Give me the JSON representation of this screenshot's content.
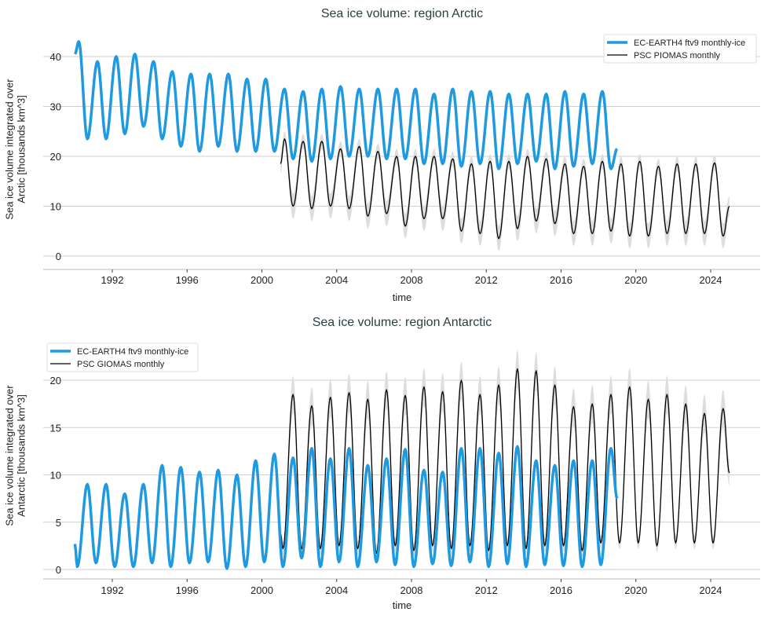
{
  "chart_data": [
    {
      "type": "line",
      "title": "Sea ice volume: region Arctic",
      "xlabel": "time",
      "ylabel": [
        "Sea ice volume integrated over",
        "Arctic [thousands km^3]"
      ],
      "xlim": [
        1988.3,
        2026.6
      ],
      "ylim": [
        -1.5,
        44
      ],
      "xticks": [
        1992,
        1996,
        2000,
        2004,
        2008,
        2012,
        2016,
        2020,
        2024
      ],
      "yticks": [
        0,
        10,
        20,
        30,
        40
      ],
      "grid": "horizontal",
      "legend_position": "top-right",
      "annual_max_month": 3.5,
      "annual_min_month": 9,
      "series": [
        {
          "name": "EC-EARTH4 ftv9 monthly-ice",
          "color": "#1f9ae0",
          "start": {
            "date": "1990-01",
            "value": 40.5
          },
          "end": {
            "date": "2019-01",
            "value": 21.5
          },
          "years": [
            1990,
            1991,
            1992,
            1993,
            1994,
            1995,
            1996,
            1997,
            1998,
            1999,
            2000,
            2001,
            2002,
            2003,
            2004,
            2005,
            2006,
            2007,
            2008,
            2009,
            2010,
            2011,
            2012,
            2013,
            2014,
            2015,
            2016,
            2017,
            2018
          ],
          "annual_max": [
            43,
            39,
            40,
            40.5,
            39,
            37,
            36.5,
            36.5,
            36.5,
            35.5,
            35.5,
            33.5,
            33,
            33.5,
            34,
            33.5,
            33.5,
            33.5,
            33.5,
            32.5,
            33.5,
            33,
            33,
            32.5,
            32.5,
            32.5,
            33,
            32.5,
            33
          ],
          "annual_min": [
            23.5,
            23.5,
            24.5,
            26,
            23.5,
            22,
            21,
            22,
            21,
            21,
            21,
            19.5,
            19,
            19.5,
            20,
            20,
            19.5,
            19.5,
            18.5,
            18.5,
            18,
            18.5,
            17.5,
            18.5,
            19,
            17.5,
            18,
            18.5,
            17.5
          ]
        },
        {
          "name": "PSC PIOMAS monthly",
          "color": "#000000",
          "band_color": "#dddddd",
          "uncertainty_at_max": 1.5,
          "uncertainty_at_min": 2.5,
          "start": {
            "date": "2001-01",
            "value": 18.5
          },
          "end": {
            "date": "2025-01",
            "value": 10
          },
          "years": [
            2001,
            2002,
            2003,
            2004,
            2005,
            2006,
            2007,
            2008,
            2009,
            2010,
            2011,
            2012,
            2013,
            2014,
            2015,
            2016,
            2017,
            2018,
            2019,
            2020,
            2021,
            2022,
            2023,
            2024
          ],
          "annual_max": [
            23.5,
            23,
            23,
            21.5,
            22,
            21,
            20,
            20,
            20,
            19.5,
            18.5,
            19,
            19,
            20,
            19.5,
            18.5,
            18,
            19,
            18.5,
            19,
            18,
            18.5,
            18.5,
            18.7
          ],
          "annual_min": [
            10,
            9.5,
            10,
            9.5,
            8,
            8.5,
            6,
            7.5,
            7.5,
            5,
            4.5,
            3.5,
            5.5,
            7,
            6.5,
            4.5,
            4.5,
            5,
            4,
            4,
            4.5,
            4.5,
            4.5,
            4
          ]
        }
      ]
    },
    {
      "type": "line",
      "title": "Sea ice volume: region Antarctic",
      "xlabel": "time",
      "ylabel": [
        "Sea ice volume integrated over",
        "Antarctic [thousands km^3]"
      ],
      "xlim": [
        1988.3,
        2026.6
      ],
      "ylim": [
        -1,
        24
      ],
      "xticks": [
        1992,
        1996,
        2000,
        2004,
        2008,
        2012,
        2016,
        2020,
        2024
      ],
      "yticks": [
        0,
        5,
        10,
        15,
        20
      ],
      "grid": "horizontal",
      "legend_position": "top-left",
      "annual_max_month": 9,
      "annual_min_month": 2.5,
      "series": [
        {
          "name": "EC-EARTH4 ftv9 monthly-ice",
          "color": "#1f9ae0",
          "start": {
            "date": "1990-01",
            "value": 2.7
          },
          "end": {
            "date": "2019-01",
            "value": 7.5
          },
          "years": [
            1990,
            1991,
            1992,
            1993,
            1994,
            1995,
            1996,
            1997,
            1998,
            1999,
            2000,
            2001,
            2002,
            2003,
            2004,
            2005,
            2006,
            2007,
            2008,
            2009,
            2010,
            2011,
            2012,
            2013,
            2014,
            2015,
            2016,
            2017,
            2018
          ],
          "annual_max": [
            9,
            9,
            8,
            9,
            11,
            10.8,
            10.3,
            10.5,
            10,
            11.5,
            12.2,
            11.8,
            12.8,
            11.7,
            12.8,
            11,
            11.7,
            12.7,
            10.5,
            10.3,
            12.8,
            12.8,
            12.3,
            13,
            11.5,
            11,
            11.5,
            11.5,
            12.8
          ],
          "annual_min": [
            0.3,
            0.7,
            0.3,
            0.3,
            0.7,
            0.3,
            0.7,
            0.8,
            0.1,
            0.3,
            0.8,
            0.3,
            1.2,
            0.3,
            0.8,
            0.3,
            0.8,
            0.5,
            0.3,
            0.6,
            0.4,
            0.8,
            0.3,
            0.6,
            0.3,
            0.5,
            0.4,
            0.3,
            0.5
          ]
        },
        {
          "name": "PSC GIOMAS monthly",
          "color": "#000000",
          "band_color": "#dddddd",
          "uncertainty_at_max": 2,
          "uncertainty_at_min": 0.7,
          "start": {
            "date": "2001-01",
            "value": 3.8
          },
          "end": {
            "date": "2025-01",
            "value": 10.2
          },
          "years": [
            2001,
            2002,
            2003,
            2004,
            2005,
            2006,
            2007,
            2008,
            2009,
            2010,
            2011,
            2012,
            2013,
            2014,
            2015,
            2016,
            2017,
            2018,
            2019,
            2020,
            2021,
            2022,
            2023,
            2024
          ],
          "annual_max": [
            18.5,
            17.3,
            18.2,
            18.7,
            18,
            19,
            18.4,
            19.3,
            18.8,
            20,
            18.5,
            19.5,
            21.2,
            21,
            19.5,
            17.2,
            17.5,
            18.5,
            19.3,
            18,
            18.5,
            17.5,
            16.5,
            17
          ],
          "annual_min": [
            2.2,
            2.2,
            2.2,
            2.5,
            2.2,
            1.7,
            2.5,
            2,
            2.5,
            2.2,
            2.5,
            2,
            2.5,
            2.2,
            2.5,
            2.5,
            2,
            2.8,
            2.8,
            2.8,
            2.5,
            2.8,
            2.8,
            2.8
          ]
        }
      ]
    }
  ]
}
